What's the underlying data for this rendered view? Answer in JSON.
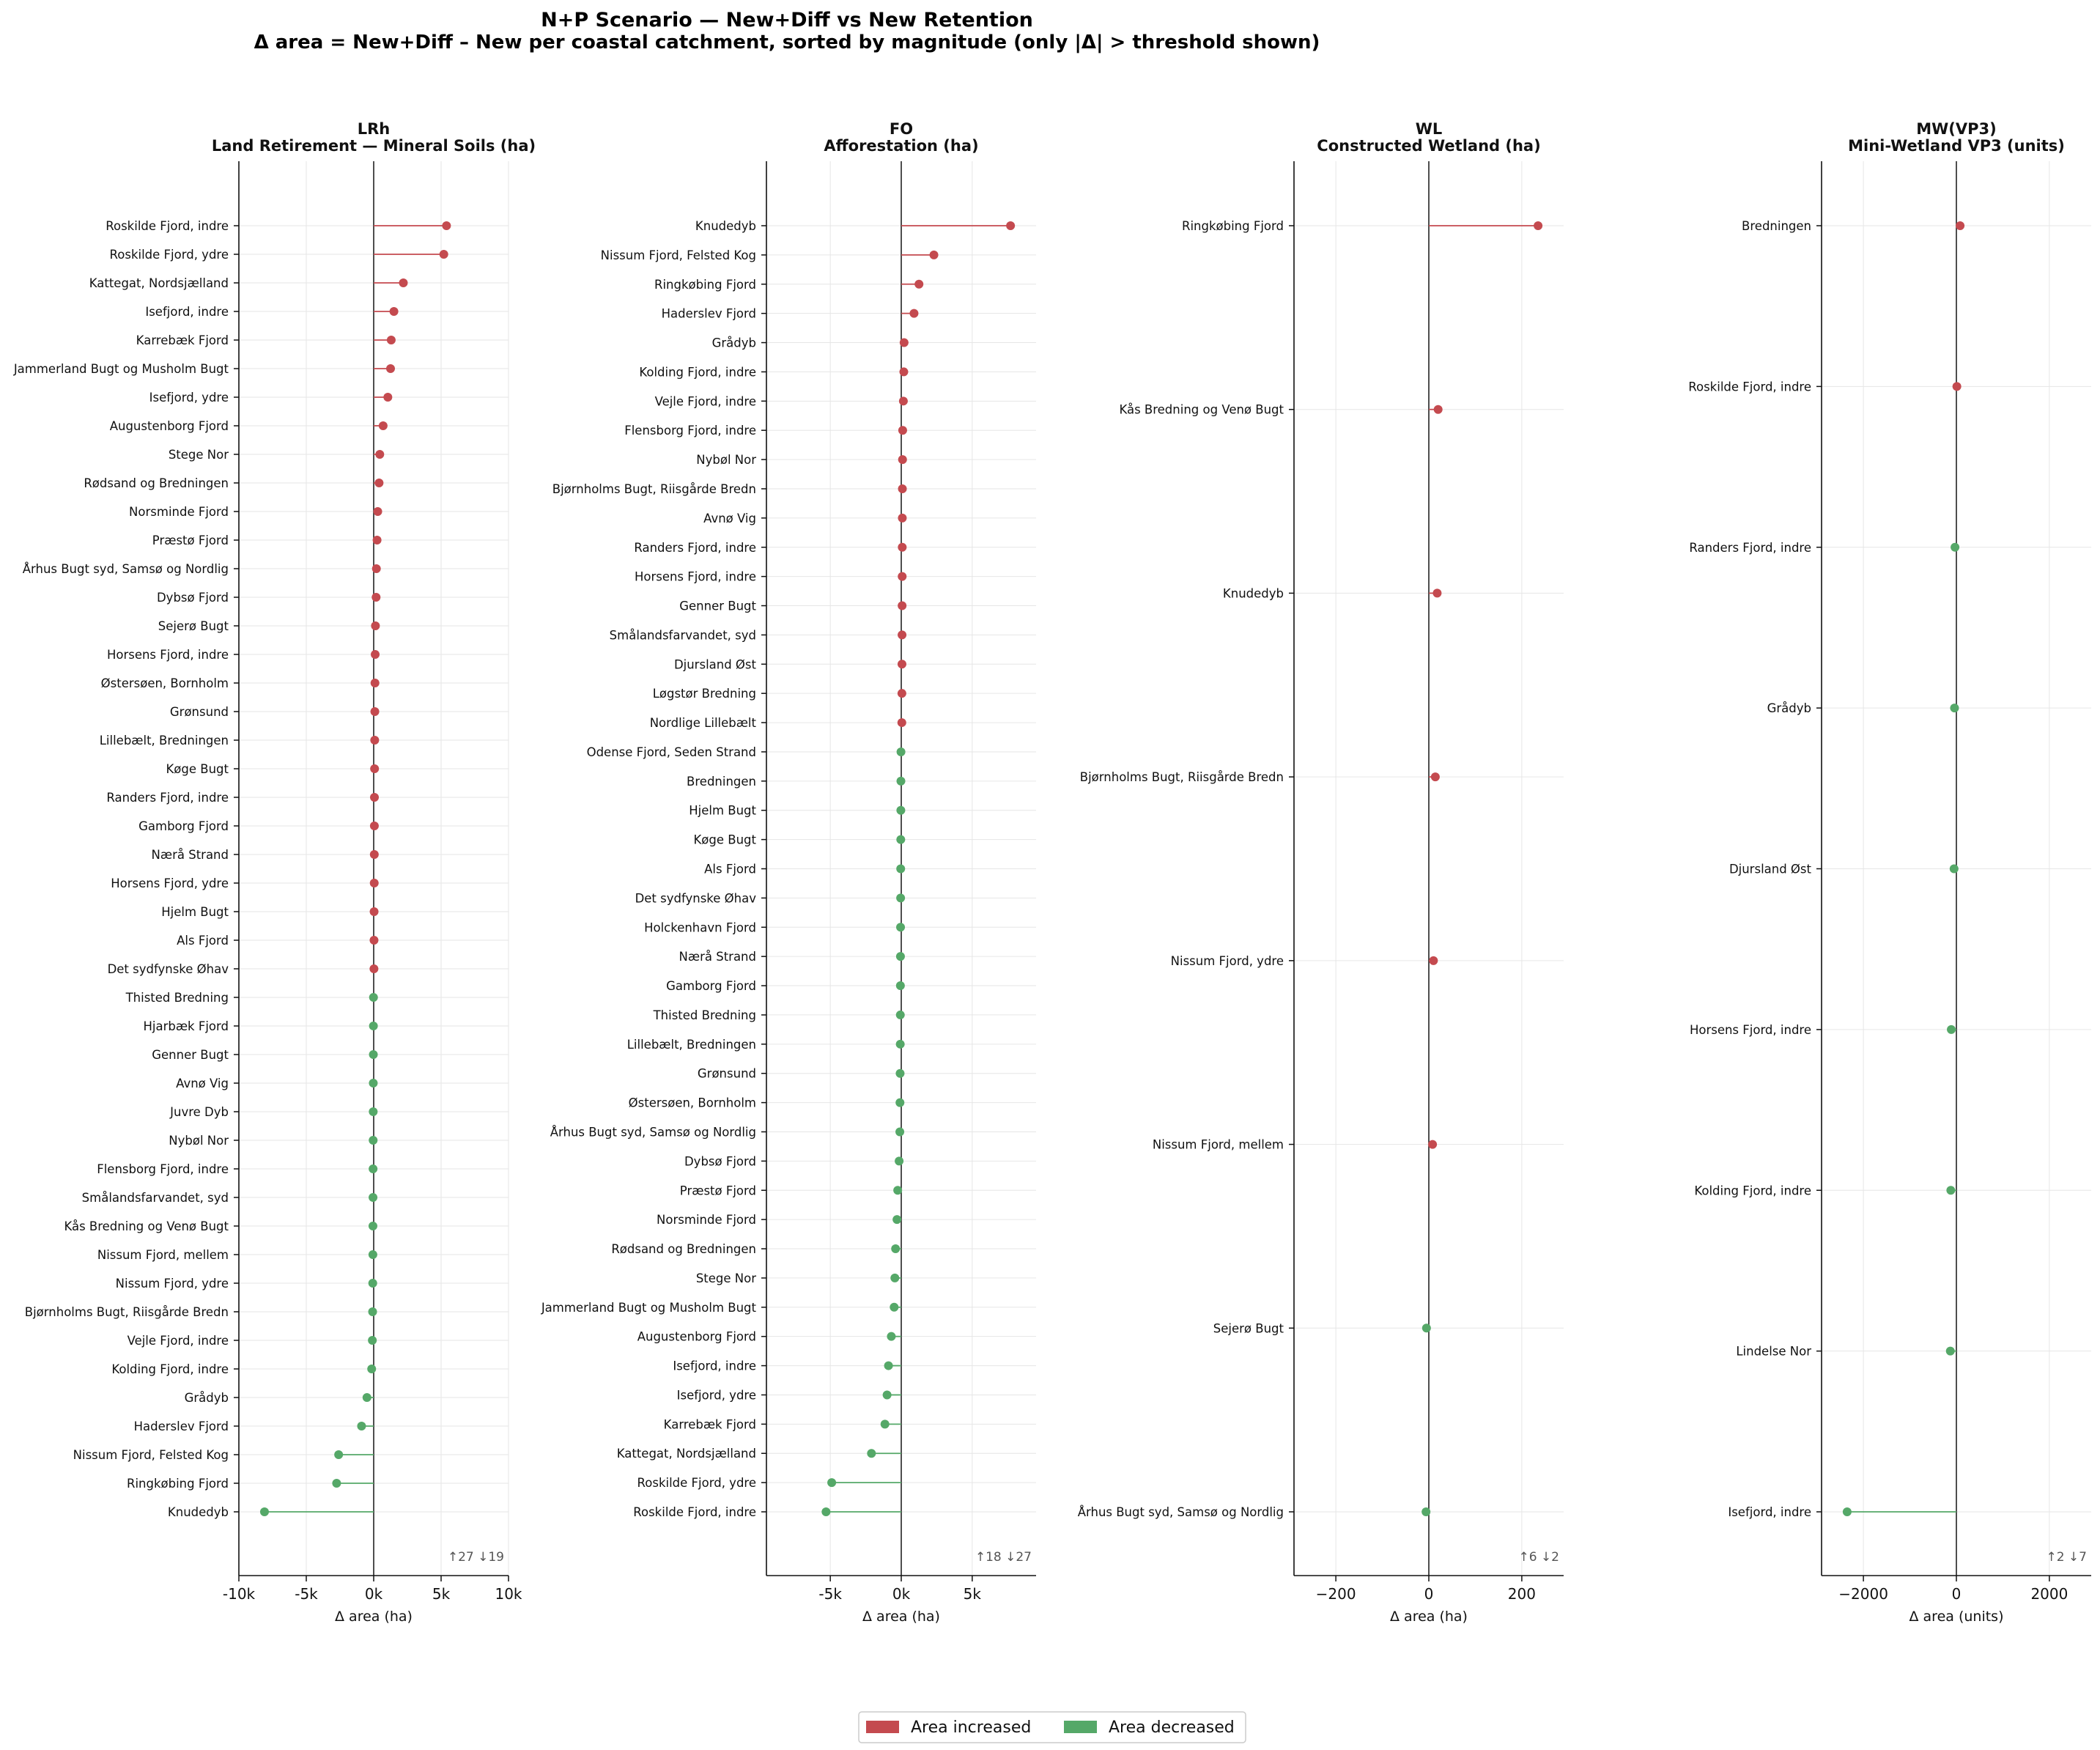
{
  "figure": {
    "title": "N+P Scenario — New+Diff vs New Retention",
    "subtitle": "Δ area  =  New+Diff – New per coastal catchment, sorted by magnitude (only |Δ| > threshold shown)"
  },
  "colors": {
    "increase": "#c44a4f",
    "decrease": "#55a868",
    "grid": "#e6e6e6",
    "axis": "#111111"
  },
  "legend": {
    "position": "bottom-center",
    "items": [
      "Area increased",
      "Area decreased"
    ]
  },
  "chart_data": [
    {
      "type": "lollipop",
      "title": "LRh",
      "subtitle": "Land Retirement — Mineral Soils (ha)",
      "xlabel": "Δ area (ha)",
      "xlim": [
        -10000,
        10000
      ],
      "xticks": [
        -10000,
        -5000,
        0,
        5000,
        10000
      ],
      "xticklabels": [
        "-10k",
        "-5k",
        "0k",
        "5k",
        "10k"
      ],
      "counts": "↑27  ↓19",
      "categories": [
        "Roskilde Fjord, indre",
        "Roskilde Fjord, ydre",
        "Kattegat, Nordsjælland",
        "Isefjord, indre",
        "Karrebæk Fjord",
        "Jammerland Bugt og Musholm Bugt",
        "Isefjord, ydre",
        "Augustenborg Fjord",
        "Stege Nor",
        "Rødsand og Bredningen",
        "Norsminde Fjord",
        "Præstø Fjord",
        "Århus Bugt syd, Samsø og Nordlig",
        "Dybsø Fjord",
        "Sejerø Bugt",
        "Horsens Fjord, indre",
        "Østersøen, Bornholm",
        "Grønsund",
        "Lillebælt, Bredningen",
        "Køge Bugt",
        "Randers Fjord, indre",
        "Gamborg Fjord",
        "Nærå Strand",
        "Horsens Fjord, ydre",
        "Hjelm Bugt",
        "Als Fjord",
        "Det sydfynske Øhav",
        "Thisted Bredning",
        "Hjarbæk Fjord",
        "Genner Bugt",
        "Avnø Vig",
        "Juvre Dyb",
        "Nybøl Nor",
        "Flensborg Fjord, indre",
        "Smålandsfarvandet, syd",
        "Kås Bredning og Venø Bugt",
        "Nissum Fjord, mellem",
        "Nissum Fjord, ydre",
        "Bjørnholms Bugt, Riisgårde Bredn",
        "Vejle Fjord, indre",
        "Kolding Fjord, indre",
        "Grådyb",
        "Haderslev Fjord",
        "Nissum Fjord, Felsted Kog",
        "Ringkøbing Fjord",
        "Knudedyb"
      ],
      "values": [
        5400,
        5200,
        2200,
        1500,
        1300,
        1250,
        1050,
        700,
        450,
        400,
        300,
        250,
        200,
        180,
        130,
        110,
        95,
        85,
        75,
        65,
        55,
        50,
        45,
        40,
        30,
        25,
        20,
        -15,
        -20,
        -25,
        -30,
        -35,
        -40,
        -45,
        -50,
        -55,
        -60,
        -70,
        -80,
        -100,
        -150,
        -500,
        -900,
        -2600,
        -2750,
        -8100
      ]
    },
    {
      "type": "lollipop",
      "title": "FO",
      "subtitle": "Afforestation (ha)",
      "xlabel": "Δ area (ha)",
      "xlim": [
        -9500,
        9500
      ],
      "xticks": [
        -5000,
        0,
        5000
      ],
      "xticklabels": [
        "-5k",
        "0k",
        "5k"
      ],
      "counts": "↑18  ↓27",
      "categories": [
        "Knudedyb",
        "Nissum Fjord, Felsted Kog",
        "Ringkøbing Fjord",
        "Haderslev Fjord",
        "Grådyb",
        "Kolding Fjord, indre",
        "Vejle Fjord, indre",
        "Flensborg Fjord, indre",
        "Nybøl Nor",
        "Bjørnholms Bugt, Riisgårde Bredn",
        "Avnø Vig",
        "Randers Fjord, indre",
        "Horsens Fjord, indre",
        "Genner Bugt",
        "Smålandsfarvandet, syd",
        "Djursland Øst",
        "Løgstør Bredning",
        "Nordlige Lillebælt",
        "Odense Fjord, Seden Strand",
        "Bredningen",
        "Hjelm Bugt",
        "Køge Bugt",
        "Als Fjord",
        "Det sydfynske Øhav",
        "Holckenhavn Fjord",
        "Nærå Strand",
        "Gamborg Fjord",
        "Thisted Bredning",
        "Lillebælt, Bredningen",
        "Grønsund",
        "Østersøen, Bornholm",
        "Århus Bugt syd, Samsø og Nordlig",
        "Dybsø Fjord",
        "Præstø Fjord",
        "Norsminde Fjord",
        "Rødsand og Bredningen",
        "Stege Nor",
        "Jammerland Bugt og Musholm Bugt",
        "Augustenborg Fjord",
        "Isefjord, indre",
        "Isefjord, ydre",
        "Karrebæk Fjord",
        "Kattegat, Nordsjælland",
        "Roskilde Fjord, ydre",
        "Roskilde Fjord, indre"
      ],
      "values": [
        7700,
        2300,
        1250,
        900,
        200,
        180,
        150,
        100,
        90,
        80,
        75,
        70,
        65,
        60,
        55,
        50,
        45,
        40,
        -20,
        -25,
        -30,
        -35,
        -40,
        -45,
        -50,
        -55,
        -60,
        -65,
        -70,
        -80,
        -90,
        -100,
        -150,
        -250,
        -300,
        -400,
        -450,
        -500,
        -700,
        -900,
        -1000,
        -1150,
        -2100,
        -4900,
        -5300
      ]
    },
    {
      "type": "lollipop",
      "title": "WL",
      "subtitle": "Constructed Wetland (ha)",
      "xlabel": "Δ area (ha)",
      "xlim": [
        -290,
        290
      ],
      "xticks": [
        -200,
        0,
        200
      ],
      "xticklabels": [
        "−200",
        "0",
        "200"
      ],
      "counts": "↑6  ↓2",
      "categories": [
        "Ringkøbing Fjord",
        "Kås Bredning og Venø Bugt",
        "Knudedyb",
        "Bjørnholms Bugt, Riisgårde Bredn",
        "Nissum Fjord, ydre",
        "Nissum Fjord, mellem",
        "Sejerø Bugt",
        "Århus Bugt syd, Samsø og Nordlig"
      ],
      "values": [
        235,
        20,
        18,
        14,
        10,
        8,
        -5,
        -6
      ]
    },
    {
      "type": "lollipop",
      "title": "MW(VP3)",
      "subtitle": "Mini-Wetland VP3 (units)",
      "xlabel": "Δ area (units)",
      "xlim": [
        -2900,
        2900
      ],
      "xticks": [
        -2000,
        0,
        2000
      ],
      "xticklabels": [
        "−2000",
        "0",
        "2000"
      ],
      "counts": "↑2  ↓7",
      "categories": [
        "Bredningen",
        "Roskilde Fjord, indre",
        "Randers Fjord, indre",
        "Grådyb",
        "Djursland Øst",
        "Horsens Fjord, indre",
        "Kolding Fjord, indre",
        "Lindelse Nor",
        "Isefjord, indre"
      ],
      "values": [
        80,
        10,
        -30,
        -40,
        -50,
        -110,
        -120,
        -130,
        -2350
      ]
    }
  ]
}
